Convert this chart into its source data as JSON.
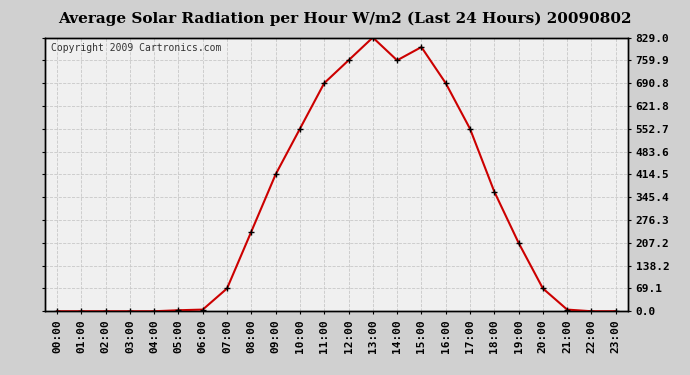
{
  "title": "Average Solar Radiation per Hour W/m2 (Last 24 Hours) 20090802",
  "copyright": "Copyright 2009 Cartronics.com",
  "hours": [
    "00:00",
    "01:00",
    "02:00",
    "03:00",
    "04:00",
    "05:00",
    "06:00",
    "07:00",
    "08:00",
    "09:00",
    "10:00",
    "11:00",
    "12:00",
    "13:00",
    "14:00",
    "15:00",
    "16:00",
    "17:00",
    "18:00",
    "19:00",
    "20:00",
    "21:00",
    "22:00",
    "23:00"
  ],
  "values": [
    0,
    0,
    0,
    0,
    0,
    3,
    5,
    69.1,
    241.5,
    414.5,
    552.7,
    690.8,
    759.9,
    829.0,
    759.9,
    800.0,
    690.8,
    552.7,
    362.3,
    207.2,
    69.1,
    5,
    0,
    0
  ],
  "yticks": [
    0.0,
    69.1,
    138.2,
    207.2,
    276.3,
    345.4,
    414.5,
    483.6,
    552.7,
    621.8,
    690.8,
    759.9,
    829.0
  ],
  "yticklabels": [
    "0.0",
    "69.1",
    "138.2",
    "207.2",
    "276.3",
    "345.4",
    "414.5",
    "483.6",
    "552.7",
    "621.8",
    "690.8",
    "759.9",
    "829.0"
  ],
  "line_color": "#cc0000",
  "marker": "+",
  "marker_color": "#000000",
  "marker_size": 5,
  "marker_lw": 1.0,
  "line_width": 1.5,
  "grid_color": "#c8c8c8",
  "bg_color": "#ffffff",
  "plot_bg_color": "#f0f0f0",
  "title_fontsize": 11,
  "copyright_fontsize": 7,
  "tick_fontsize": 8,
  "ylim": [
    0,
    829.0
  ],
  "outer_bg": "#d0d0d0"
}
